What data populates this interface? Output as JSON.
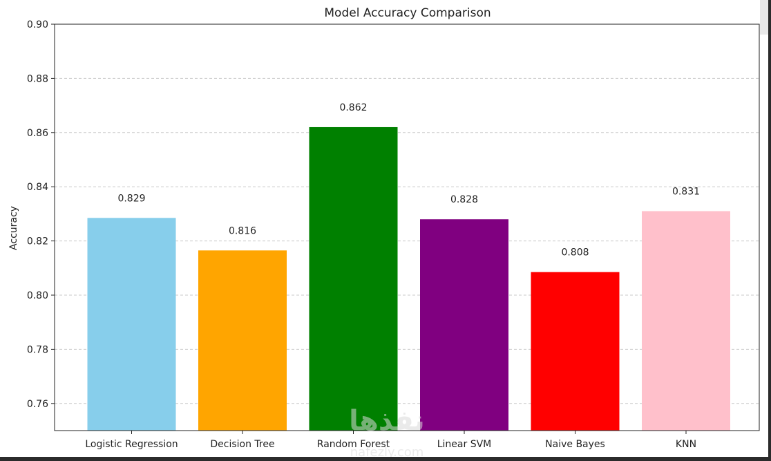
{
  "chart_data": {
    "type": "bar",
    "title": "Model Accuracy Comparison",
    "xlabel": "",
    "ylabel": "Accuracy",
    "ylim": [
      0.75,
      0.9
    ],
    "yticks": [
      "0.76",
      "0.78",
      "0.80",
      "0.82",
      "0.84",
      "0.86",
      "0.88",
      "0.90"
    ],
    "grid": "y-dashed",
    "categories": [
      "Logistic Regression",
      "Decision Tree",
      "Random Forest",
      "Linear SVM",
      "Naive Bayes",
      "KNN"
    ],
    "values": [
      0.8285,
      0.8165,
      0.862,
      0.828,
      0.8085,
      0.831
    ],
    "value_labels": [
      "0.829",
      "0.816",
      "0.862",
      "0.828",
      "0.808",
      "0.831"
    ],
    "colors": [
      "#87CEEB",
      "#FFA500",
      "#008000",
      "#800080",
      "#FF0000",
      "#FFC0CB"
    ]
  },
  "watermark": {
    "text_arabic": "نفذها",
    "text_latin": "nafezly.com"
  }
}
